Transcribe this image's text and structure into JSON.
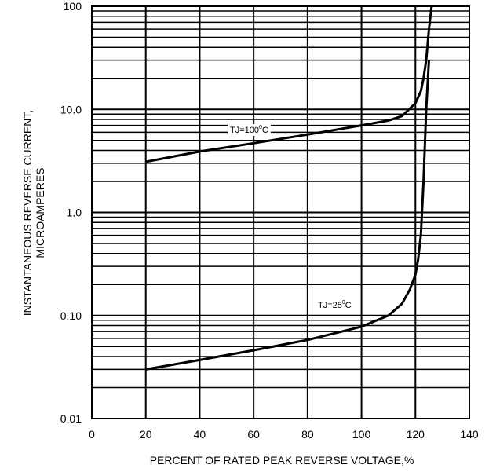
{
  "chart_data": {
    "type": "line",
    "title": "",
    "xlabel": "PERCENT OF RATED PEAK REVERSE VOLTAGE,%",
    "ylabel_line1": "INSTANTANEOUS REVERSE CURRENT,",
    "ylabel_line2": "MICROAMPERES",
    "xlim": [
      0,
      140
    ],
    "ylim": [
      0.01,
      100
    ],
    "yscale": "log",
    "grid": true,
    "x_ticks": [
      0,
      20,
      40,
      60,
      80,
      100,
      120,
      140
    ],
    "x_tick_labels": [
      "0",
      "20",
      "40",
      "60",
      "80",
      "100",
      "120",
      "140"
    ],
    "y_ticks": [
      0.01,
      0.1,
      1,
      10,
      100
    ],
    "y_tick_labels": [
      "0.01",
      "0.10",
      "1.0",
      "10.0",
      "100"
    ],
    "series": [
      {
        "label_main": "TJ=100",
        "label_sup": "0",
        "label_unit": "C",
        "color": "#000000",
        "x": [
          20,
          40,
          60,
          80,
          100,
          110,
          115,
          120,
          122,
          123,
          124,
          125,
          126
        ],
        "y": [
          3.1,
          3.9,
          4.7,
          5.7,
          7.0,
          7.8,
          8.6,
          11.5,
          15,
          20,
          30,
          60,
          100
        ]
      },
      {
        "label_main": "TJ=25",
        "label_sup": "0",
        "label_unit": "C",
        "color": "#000000",
        "x": [
          20,
          40,
          60,
          80,
          100,
          110,
          115,
          118,
          120,
          121,
          122,
          123,
          124,
          125
        ],
        "y": [
          0.03,
          0.037,
          0.046,
          0.058,
          0.078,
          0.1,
          0.13,
          0.18,
          0.25,
          0.35,
          0.6,
          2,
          10,
          30
        ]
      }
    ]
  }
}
